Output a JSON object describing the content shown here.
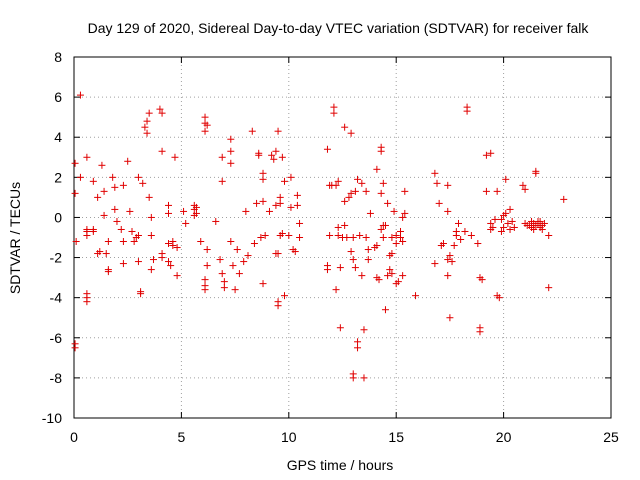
{
  "chart_data": {
    "type": "scatter",
    "title": "Day 129 of 2020, Sidereal Day-to-day VTEC variation (SDTVAR) for receiver falk",
    "xlabel": "GPS time / hours",
    "ylabel": "SDTVAR / TECUs",
    "xlim": [
      0,
      25
    ],
    "ylim": [
      -10,
      8
    ],
    "xticks": [
      0,
      5,
      10,
      15,
      20,
      25
    ],
    "yticks": [
      -10,
      -8,
      -6,
      -4,
      -2,
      0,
      2,
      4,
      6,
      8
    ],
    "grid": true,
    "marker": "plus",
    "series": [
      {
        "name": "SDTVAR",
        "color": "#e00000",
        "points": [
          [
            0.05,
            -6.3
          ],
          [
            0.05,
            -6.5
          ],
          [
            0.05,
            2.7
          ],
          [
            0.05,
            1.2
          ],
          [
            0.1,
            -1.2
          ],
          [
            0.3,
            6.1
          ],
          [
            0.3,
            2.0
          ],
          [
            0.6,
            3.0
          ],
          [
            0.6,
            -0.7
          ],
          [
            0.6,
            -0.6
          ],
          [
            0.6,
            -0.9
          ],
          [
            0.6,
            -3.8
          ],
          [
            0.6,
            -4.0
          ],
          [
            0.6,
            -4.2
          ],
          [
            0.9,
            1.8
          ],
          [
            0.9,
            -0.6
          ],
          [
            0.9,
            -0.7
          ],
          [
            1.1,
            1.0
          ],
          [
            1.1,
            -1.8
          ],
          [
            1.2,
            -1.7
          ],
          [
            1.3,
            2.6
          ],
          [
            1.4,
            1.3
          ],
          [
            1.4,
            0.1
          ],
          [
            1.5,
            -1.8
          ],
          [
            1.6,
            -2.6
          ],
          [
            1.6,
            -2.7
          ],
          [
            1.6,
            -1.2
          ],
          [
            1.8,
            2.0
          ],
          [
            1.9,
            1.5
          ],
          [
            1.9,
            0.4
          ],
          [
            2.0,
            -0.2
          ],
          [
            2.2,
            -0.6
          ],
          [
            2.3,
            1.6
          ],
          [
            2.3,
            -1.2
          ],
          [
            2.3,
            -2.3
          ],
          [
            2.5,
            2.8
          ],
          [
            2.6,
            0.3
          ],
          [
            2.7,
            -0.7
          ],
          [
            2.8,
            -1.2
          ],
          [
            2.9,
            -1.0
          ],
          [
            3.0,
            2.0
          ],
          [
            3.0,
            -0.9
          ],
          [
            3.0,
            -2.2
          ],
          [
            3.1,
            -3.7
          ],
          [
            3.1,
            -3.8
          ],
          [
            3.2,
            1.7
          ],
          [
            3.3,
            4.5
          ],
          [
            3.4,
            4.8
          ],
          [
            3.4,
            4.2
          ],
          [
            3.5,
            5.2
          ],
          [
            3.5,
            1.0
          ],
          [
            3.6,
            0.0
          ],
          [
            3.6,
            -0.9
          ],
          [
            3.6,
            -2.6
          ],
          [
            3.7,
            -2.1
          ],
          [
            4.0,
            5.4
          ],
          [
            4.1,
            5.2
          ],
          [
            4.1,
            3.3
          ],
          [
            4.1,
            -1.8
          ],
          [
            4.1,
            -2.0
          ],
          [
            4.4,
            0.6
          ],
          [
            4.4,
            0.2
          ],
          [
            4.4,
            -1.3
          ],
          [
            4.4,
            -2.2
          ],
          [
            4.5,
            -2.4
          ],
          [
            4.6,
            -1.2
          ],
          [
            4.6,
            -1.4
          ],
          [
            4.7,
            3.0
          ],
          [
            4.8,
            -2.9
          ],
          [
            4.8,
            -1.5
          ],
          [
            5.1,
            0.3
          ],
          [
            5.2,
            -0.3
          ],
          [
            5.6,
            0.6
          ],
          [
            5.6,
            0.4
          ],
          [
            5.6,
            0.1
          ],
          [
            5.7,
            0.2
          ],
          [
            5.7,
            0.5
          ],
          [
            5.9,
            -1.2
          ],
          [
            6.1,
            5.0
          ],
          [
            6.1,
            4.7
          ],
          [
            6.1,
            4.3
          ],
          [
            6.2,
            4.6
          ],
          [
            6.1,
            -3.1
          ],
          [
            6.1,
            -3.4
          ],
          [
            6.1,
            -3.6
          ],
          [
            6.2,
            -1.6
          ],
          [
            6.2,
            -2.4
          ],
          [
            6.6,
            -0.2
          ],
          [
            6.8,
            -2.1
          ],
          [
            6.9,
            3.0
          ],
          [
            6.9,
            1.8
          ],
          [
            6.9,
            -2.8
          ],
          [
            7.0,
            -3.2
          ],
          [
            7.0,
            -3.5
          ],
          [
            7.3,
            3.9
          ],
          [
            7.3,
            3.3
          ],
          [
            7.3,
            2.7
          ],
          [
            7.3,
            -1.2
          ],
          [
            7.4,
            -2.4
          ],
          [
            7.5,
            -3.6
          ],
          [
            7.6,
            -1.6
          ],
          [
            7.7,
            -2.8
          ],
          [
            7.9,
            -2.2
          ],
          [
            8.0,
            0.3
          ],
          [
            8.1,
            -1.9
          ],
          [
            8.3,
            4.3
          ],
          [
            8.4,
            -1.3
          ],
          [
            8.5,
            0.7
          ],
          [
            8.6,
            3.2
          ],
          [
            8.6,
            3.1
          ],
          [
            8.7,
            -1.0
          ],
          [
            8.8,
            2.2
          ],
          [
            8.8,
            1.9
          ],
          [
            8.8,
            0.8
          ],
          [
            8.8,
            -3.3
          ],
          [
            8.9,
            -0.9
          ],
          [
            9.1,
            0.3
          ],
          [
            9.2,
            3.1
          ],
          [
            9.3,
            2.9
          ],
          [
            9.4,
            3.3
          ],
          [
            9.4,
            0.6
          ],
          [
            9.4,
            -1.8
          ],
          [
            9.5,
            4.3
          ],
          [
            9.5,
            -4.4
          ],
          [
            9.5,
            -4.2
          ],
          [
            9.5,
            -1.8
          ],
          [
            9.6,
            1.0
          ],
          [
            9.6,
            0.7
          ],
          [
            9.6,
            -0.9
          ],
          [
            9.7,
            -0.8
          ],
          [
            9.7,
            3.0
          ],
          [
            9.8,
            1.8
          ],
          [
            9.8,
            -3.9
          ],
          [
            10.0,
            -0.9
          ],
          [
            10.1,
            2.0
          ],
          [
            10.1,
            0.5
          ],
          [
            10.2,
            -1.6
          ],
          [
            10.3,
            -1.7
          ],
          [
            10.4,
            1.1
          ],
          [
            10.4,
            0.6
          ],
          [
            10.5,
            -0.3
          ],
          [
            10.5,
            -1.0
          ],
          [
            11.8,
            3.4
          ],
          [
            11.8,
            -2.4
          ],
          [
            11.8,
            -2.6
          ],
          [
            11.9,
            1.6
          ],
          [
            11.9,
            -0.9
          ],
          [
            12.0,
            1.6
          ],
          [
            12.1,
            5.5
          ],
          [
            12.1,
            5.2
          ],
          [
            12.2,
            1.6
          ],
          [
            12.2,
            -3.6
          ],
          [
            12.3,
            1.8
          ],
          [
            12.3,
            -0.9
          ],
          [
            12.3,
            -0.5
          ],
          [
            12.4,
            -5.5
          ],
          [
            12.4,
            -2.5
          ],
          [
            12.5,
            -1.0
          ],
          [
            12.6,
            4.5
          ],
          [
            12.6,
            0.8
          ],
          [
            12.6,
            -0.4
          ],
          [
            12.7,
            -1.0
          ],
          [
            12.8,
            1.0
          ],
          [
            12.9,
            4.2
          ],
          [
            12.9,
            1.2
          ],
          [
            12.9,
            -1.7
          ],
          [
            13.0,
            -2.1
          ],
          [
            13.0,
            -7.8
          ],
          [
            13.0,
            -8.0
          ],
          [
            13.0,
            -1.0
          ],
          [
            13.1,
            1.3
          ],
          [
            13.1,
            -2.5
          ],
          [
            13.2,
            -6.2
          ],
          [
            13.2,
            -6.5
          ],
          [
            13.2,
            1.9
          ],
          [
            13.3,
            -0.9
          ],
          [
            13.4,
            -2.9
          ],
          [
            13.4,
            1.7
          ],
          [
            13.5,
            -5.6
          ],
          [
            13.5,
            -8.0
          ],
          [
            13.6,
            1.3
          ],
          [
            13.6,
            -1.0
          ],
          [
            13.7,
            -2.1
          ],
          [
            13.7,
            -1.6
          ],
          [
            13.8,
            0.2
          ],
          [
            14.0,
            -1.5
          ],
          [
            14.1,
            2.4
          ],
          [
            14.1,
            -1.4
          ],
          [
            14.1,
            -3.0
          ],
          [
            14.2,
            -3.1
          ],
          [
            14.3,
            3.5
          ],
          [
            14.3,
            3.3
          ],
          [
            14.3,
            1.2
          ],
          [
            14.3,
            -0.6
          ],
          [
            14.4,
            1.7
          ],
          [
            14.4,
            -0.4
          ],
          [
            14.4,
            -1.0
          ],
          [
            14.5,
            -4.6
          ],
          [
            14.5,
            -0.4
          ],
          [
            14.6,
            0.7
          ],
          [
            14.6,
            -2.9
          ],
          [
            14.7,
            -1.9
          ],
          [
            14.7,
            -2.6
          ],
          [
            14.8,
            -2.8
          ],
          [
            14.8,
            -1.0
          ],
          [
            14.8,
            -1.8
          ],
          [
            14.9,
            0.3
          ],
          [
            15.0,
            -1.3
          ],
          [
            15.0,
            -0.9
          ],
          [
            15.0,
            -3.3
          ],
          [
            15.1,
            -3.2
          ],
          [
            15.2,
            -1.0
          ],
          [
            15.2,
            -0.7
          ],
          [
            15.3,
            0.0
          ],
          [
            15.3,
            -1.2
          ],
          [
            15.3,
            -2.9
          ],
          [
            15.4,
            1.3
          ],
          [
            15.4,
            0.2
          ],
          [
            15.9,
            -3.9
          ],
          [
            16.8,
            2.2
          ],
          [
            16.8,
            -2.3
          ],
          [
            16.9,
            1.7
          ],
          [
            17.0,
            0.7
          ],
          [
            17.1,
            -1.4
          ],
          [
            17.2,
            -1.3
          ],
          [
            17.4,
            1.6
          ],
          [
            17.4,
            0.3
          ],
          [
            17.4,
            -2.1
          ],
          [
            17.4,
            -2.9
          ],
          [
            17.5,
            -5.0
          ],
          [
            17.5,
            -1.9
          ],
          [
            17.6,
            -2.2
          ],
          [
            17.7,
            -1.4
          ],
          [
            17.8,
            -0.7
          ],
          [
            17.8,
            -0.9
          ],
          [
            17.9,
            -0.3
          ],
          [
            18.0,
            -1.1
          ],
          [
            18.2,
            -0.7
          ],
          [
            18.3,
            5.5
          ],
          [
            18.3,
            5.3
          ],
          [
            18.5,
            -0.9
          ],
          [
            18.8,
            -1.3
          ],
          [
            18.9,
            -5.5
          ],
          [
            18.9,
            -5.7
          ],
          [
            18.9,
            -3.0
          ],
          [
            19.0,
            -3.1
          ],
          [
            19.2,
            3.1
          ],
          [
            19.2,
            1.3
          ],
          [
            19.4,
            3.2
          ],
          [
            19.4,
            -0.6
          ],
          [
            19.4,
            -0.3
          ],
          [
            19.5,
            -0.5
          ],
          [
            19.6,
            -0.1
          ],
          [
            19.7,
            1.3
          ],
          [
            19.7,
            -3.9
          ],
          [
            19.8,
            -4.0
          ],
          [
            19.9,
            -0.7
          ],
          [
            19.9,
            -0.1
          ],
          [
            20.0,
            0.1
          ],
          [
            20.0,
            -0.5
          ],
          [
            20.1,
            1.9
          ],
          [
            20.1,
            0.2
          ],
          [
            20.2,
            -0.3
          ],
          [
            20.3,
            0.4
          ],
          [
            20.3,
            -0.6
          ],
          [
            20.4,
            -0.2
          ],
          [
            20.5,
            -0.5
          ],
          [
            20.9,
            1.6
          ],
          [
            21.0,
            -0.3
          ],
          [
            21.0,
            1.4
          ],
          [
            21.1,
            -0.4
          ],
          [
            21.2,
            -0.4
          ],
          [
            21.3,
            -0.2
          ],
          [
            21.3,
            -0.5
          ],
          [
            21.4,
            -0.3
          ],
          [
            21.4,
            -0.6
          ],
          [
            21.5,
            -0.4
          ],
          [
            21.5,
            2.3
          ],
          [
            21.5,
            2.2
          ],
          [
            21.6,
            -0.2
          ],
          [
            21.6,
            -0.3
          ],
          [
            21.7,
            -0.5
          ],
          [
            21.7,
            -0.2
          ],
          [
            21.8,
            -0.4
          ],
          [
            21.8,
            -0.6
          ],
          [
            21.9,
            -0.3
          ],
          [
            22.1,
            -0.9
          ],
          [
            22.1,
            -3.5
          ],
          [
            22.8,
            0.9
          ]
        ]
      }
    ]
  }
}
